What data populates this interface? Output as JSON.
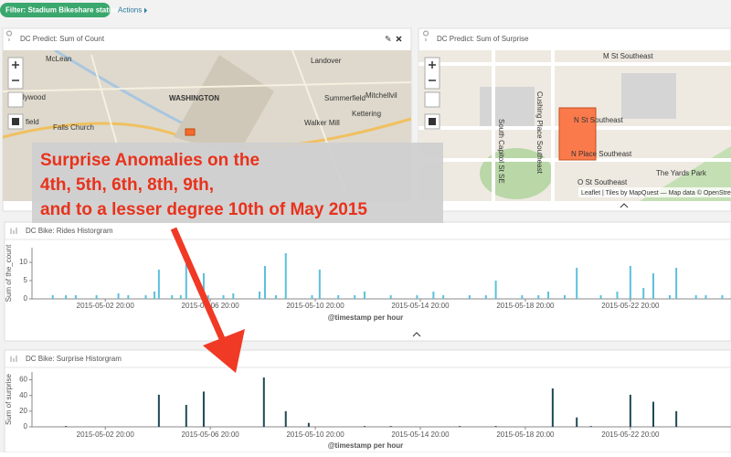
{
  "filter_bar": {
    "filter": "Filter: Stadium Bikeshare station",
    "actions": "Actions"
  },
  "panels": [
    {
      "title": "DC Predict: Sum of Count",
      "map_labels": [
        "McLean",
        "Landover",
        "WASHINGTON",
        "Summerfield",
        "Mitchellvil",
        "Falls Church",
        "Walker Mill",
        "Kettering",
        "lywood",
        "field"
      ]
    },
    {
      "title": "DC Predict: Sum of Surprise",
      "map_labels": [
        "M St Southeast",
        "N St Southeast",
        "N Place Southeast",
        "O St Southeast",
        "The Yards Park",
        "South Capitol St SE",
        "Cushing Place Southeast"
      ],
      "attribution": "Leaflet | Tiles by MapQuest — Map data © OpenStreetMap"
    }
  ],
  "annotation": {
    "lines": [
      "Surprise Anomalies on the",
      "4th, 5th, 6th, 8th, 9th,",
      "and to a lesser degree 10th of May 2015"
    ]
  },
  "chart_data": [
    {
      "type": "bar",
      "title": "DC Bike: Rides Historgram",
      "y_label": "Sum of the_count",
      "x_label": "@timestamp per hour",
      "color": "#5bc0dc",
      "x": [
        "2015-04-30 20:00",
        "2015-05-01 08:00",
        "2015-05-01 17:00",
        "2015-05-02 12:00",
        "2015-05-03 08:00",
        "2015-05-03 17:00",
        "2015-05-04 09:00",
        "2015-05-04 17:00",
        "2015-05-04 21:00",
        "2015-05-05 09:00",
        "2015-05-05 17:00",
        "2015-05-05 22:00",
        "2015-05-06 14:00",
        "2015-05-06 18:00",
        "2015-05-07 08:00",
        "2015-05-07 17:00",
        "2015-05-08 17:00",
        "2015-05-08 22:00",
        "2015-05-09 08:00",
        "2015-05-09 17:00",
        "2015-05-10 17:00",
        "2015-05-11 00:00",
        "2015-05-11 17:00",
        "2015-05-12 08:00",
        "2015-05-12 17:00",
        "2015-05-13 17:00",
        "2015-05-14 17:00",
        "2015-05-15 08:00",
        "2015-05-15 17:00",
        "2015-05-16 17:00",
        "2015-05-17 08:00",
        "2015-05-17 17:00",
        "2015-05-18 17:00",
        "2015-05-19 08:00",
        "2015-05-19 17:00",
        "2015-05-20 08:00",
        "2015-05-20 19:00",
        "2015-05-21 17:00",
        "2015-05-22 08:00",
        "2015-05-22 20:00",
        "2015-05-23 08:00",
        "2015-05-23 17:00",
        "2015-05-24 08:00",
        "2015-05-24 14:00",
        "2015-05-25 08:00",
        "2015-05-25 17:00",
        "2015-05-26 08:00"
      ],
      "values": [
        1,
        1,
        1,
        1,
        1.5,
        1,
        1,
        2,
        8,
        1,
        1,
        9.5,
        7,
        1,
        1,
        1.5,
        2,
        9,
        1,
        12.5,
        1,
        8,
        1,
        1,
        2,
        1,
        1,
        2,
        1,
        1,
        1,
        5,
        1,
        1,
        2,
        1,
        8.5,
        1,
        2,
        9,
        3,
        7,
        1,
        8.5,
        1,
        1,
        1
      ],
      "xlim": [
        "2015-04-30 01:00",
        "2015-05-26 16:00"
      ],
      "xticks": [
        "2015-05-02 20:00",
        "2015-05-06 20:00",
        "2015-05-10 20:00",
        "2015-05-14 20:00",
        "2015-05-18 20:00",
        "2015-05-22 20:00"
      ],
      "ylim": [
        0,
        14
      ],
      "yticks": [
        0,
        5,
        10
      ],
      "grid": false
    },
    {
      "type": "bar",
      "title": "DC Bike: Surprise Historgram",
      "y_label": "Sum of surprise",
      "x_label": "@timestamp per hour",
      "color": "#1d4a55",
      "x": [
        "2015-05-01 08:00",
        "2015-05-04 21:00",
        "2015-05-05 22:00",
        "2015-05-06 14:00",
        "2015-05-08 21:00",
        "2015-05-09 17:00",
        "2015-05-10 14:00",
        "2015-05-12 17:00",
        "2015-05-13 17:00",
        "2015-05-16 08:00",
        "2015-05-17 17:00",
        "2015-05-19 21:00",
        "2015-05-20 19:00",
        "2015-05-21 08:00",
        "2015-05-22 20:00",
        "2015-05-23 17:00",
        "2015-05-24 14:00"
      ],
      "values": [
        1,
        41,
        28,
        45,
        63,
        20,
        5,
        1,
        1,
        1,
        1,
        49,
        12,
        1,
        41,
        32,
        20
      ],
      "xlim": [
        "2015-04-30 01:00",
        "2015-05-26 16:00"
      ],
      "xticks": [
        "2015-05-02 20:00",
        "2015-05-06 20:00",
        "2015-05-10 20:00",
        "2015-05-14 20:00",
        "2015-05-18 20:00",
        "2015-05-22 20:00"
      ],
      "ylim": [
        0,
        70
      ],
      "yticks": [
        0,
        20,
        40,
        60
      ],
      "grid": false
    }
  ]
}
